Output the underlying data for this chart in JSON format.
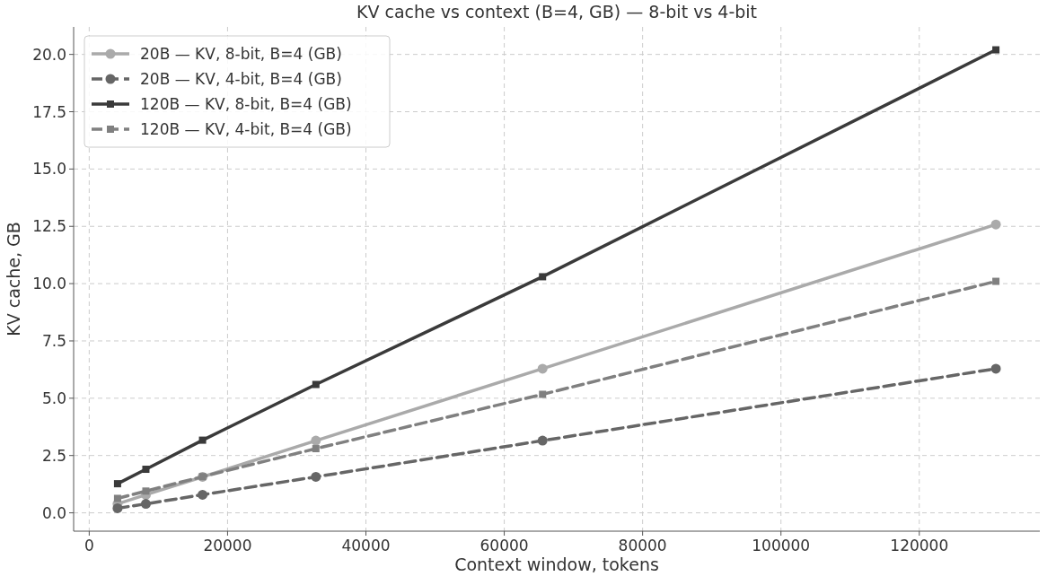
{
  "chart_data": {
    "type": "line",
    "title": "KV cache vs context (B=4, GB) — 8-bit vs 4-bit",
    "xlabel": "Context window, tokens",
    "ylabel": "KV cache, GB",
    "x": [
      4096,
      8192,
      16384,
      32768,
      65536,
      131072
    ],
    "series": [
      {
        "name": "20B — KV, 8-bit, B=4 (GB)",
        "color": "#aaaaaa",
        "marker": "circle",
        "line_style": "solid",
        "values": [
          0.39,
          0.79,
          1.57,
          3.15,
          6.29,
          12.58
        ]
      },
      {
        "name": "20B — KV, 4-bit, B=4 (GB)",
        "color": "#666666",
        "marker": "circle",
        "line_style": "dashed",
        "values": [
          0.2,
          0.39,
          0.79,
          1.57,
          3.15,
          6.29
        ]
      },
      {
        "name": "120B — KV, 8-bit, B=4 (GB)",
        "color": "#3a3a3a",
        "marker": "square",
        "line_style": "solid",
        "values": [
          1.27,
          1.9,
          3.17,
          5.6,
          10.3,
          20.2
        ]
      },
      {
        "name": "120B — KV, 4-bit, B=4 (GB)",
        "color": "#808080",
        "marker": "square",
        "line_style": "dashed",
        "values": [
          0.63,
          0.95,
          1.58,
          2.8,
          5.17,
          10.1
        ]
      }
    ],
    "xlim": [
      -2253,
      137421
    ],
    "xticks": [
      0,
      20000,
      40000,
      60000,
      80000,
      100000,
      120000
    ],
    "ylim": [
      -0.8,
      21.2
    ],
    "yticks": [
      {
        "value": 0,
        "label": "0.0"
      },
      {
        "value": 2.5,
        "label": "2.5"
      },
      {
        "value": 5,
        "label": "5.0"
      },
      {
        "value": 7.5,
        "label": "7.5"
      },
      {
        "value": 10,
        "label": "10.0"
      },
      {
        "value": 12.5,
        "label": "12.5"
      },
      {
        "value": 15,
        "label": "15.0"
      },
      {
        "value": 17.5,
        "label": "17.5"
      },
      {
        "value": 20,
        "label": "20.0"
      }
    ],
    "grid": true,
    "legend": "top left"
  }
}
